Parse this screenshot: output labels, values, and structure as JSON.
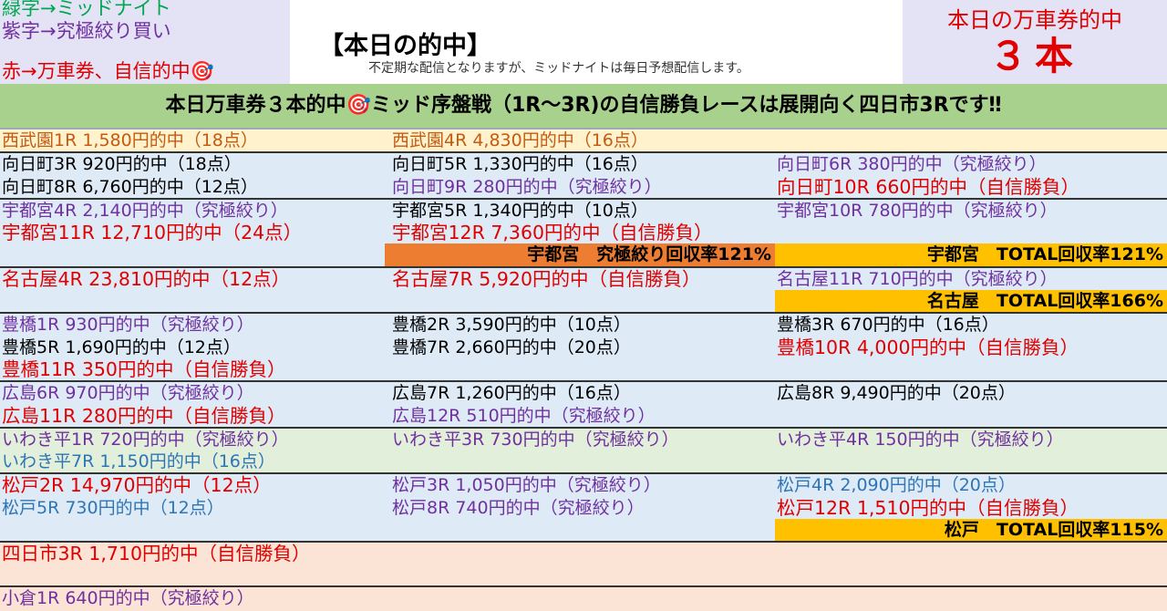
{
  "header": {
    "legend": [
      {
        "text": "緑字→ミッドナイト",
        "color": "#00a651"
      },
      {
        "text": "紫字→究極絞り買い",
        "color": "#7030a0"
      },
      {
        "text": "赤→万車券、自信的中🎯",
        "color": "#e00000"
      }
    ],
    "title": "【本日の的中】",
    "subtitle": "不定期な配信となりますが、ミッドナイトは毎日予想配信します。",
    "right_title": "本日の万車券的中",
    "right_count": "３本"
  },
  "banner": {
    "text": "本日万車券３本的中🎯ミッド序盤戦（1R〜3R)の自信勝負レースは展開向く四日市3Rです‼"
  },
  "sections": [
    {
      "background": "#fff2cc",
      "rows": [
        {
          "cells": [
            {
              "text": "西武園1R 1,580円的中（18点）",
              "color": "#c55a11"
            },
            {
              "text": "西武園4R 4,830円的中（16点）",
              "color": "#c55a11"
            },
            null
          ]
        }
      ]
    },
    {
      "background": "#deebf7",
      "rows": [
        {
          "cells": [
            {
              "text": "向日町3R 920円的中（18点）",
              "color": "#000000"
            },
            {
              "text": "向日町5R 1,330円的中（16点）",
              "color": "#000000"
            },
            {
              "text": "向日町6R 380円的中（究極絞り）",
              "color": "#7030a0"
            }
          ]
        },
        {
          "cells": [
            {
              "text": "向日町8R 6,760円的中（12点）",
              "color": "#000000"
            },
            {
              "text": "向日町9R 280円的中（究極絞り）",
              "color": "#7030a0"
            },
            {
              "text": "向日町10R 660円的中（自信勝負）",
              "color": "#e00000"
            }
          ]
        }
      ]
    },
    {
      "background": "#deebf7",
      "rows": [
        {
          "cells": [
            {
              "text": "宇都宮4R 2,140円的中（究極絞り）",
              "color": "#7030a0"
            },
            {
              "text": "宇都宮5R 1,340円的中（10点）",
              "color": "#000000"
            },
            {
              "text": "宇都宮10R 780円的中（究極絞り）",
              "color": "#7030a0"
            }
          ]
        },
        {
          "cells": [
            {
              "text": "宇都宮11R 12,710円的中（24点）",
              "color": "#e00000"
            },
            {
              "text": "宇都宮12R 7,360円的中（自信勝負）",
              "color": "#e00000"
            },
            null
          ]
        },
        {
          "cells": [
            null,
            {
              "text": "宇都宮　究極絞り回収率121%",
              "color": "#000000",
              "background": "#ed7d31"
            },
            {
              "text": "宇都宮　TOTAL回収率121%",
              "color": "#000000",
              "background": "#ffc000"
            }
          ]
        }
      ]
    },
    {
      "background": "#deebf7",
      "rows": [
        {
          "cells": [
            {
              "text": "名古屋4R 23,810円的中（12点）",
              "color": "#e00000"
            },
            {
              "text": "名古屋7R 5,920円的中（自信勝負）",
              "color": "#e00000"
            },
            {
              "text": "名古屋11R 710円的中（究極絞り）",
              "color": "#7030a0"
            }
          ]
        },
        {
          "cells": [
            null,
            null,
            {
              "text": "名古屋　TOTAL回収率166%",
              "color": "#000000",
              "background": "#ffc000"
            }
          ]
        }
      ]
    },
    {
      "background": "#deebf7",
      "rows": [
        {
          "cells": [
            {
              "text": "豊橋1R 930円的中（究極絞り）",
              "color": "#7030a0"
            },
            {
              "text": "豊橋2R 3,590円的中（10点）",
              "color": "#000000"
            },
            {
              "text": "豊橋3R 670円的中（16点）",
              "color": "#000000"
            }
          ]
        },
        {
          "cells": [
            {
              "text": "豊橋5R 1,690円的中（12点）",
              "color": "#000000"
            },
            {
              "text": "豊橋7R 2,660円的中（20点）",
              "color": "#000000"
            },
            {
              "text": "豊橋10R 4,000円的中（自信勝負）",
              "color": "#e00000"
            }
          ]
        },
        {
          "cells": [
            {
              "text": "豊橋11R 350円的中（自信勝負）",
              "color": "#e00000"
            },
            null,
            null
          ]
        }
      ]
    },
    {
      "background": "#deebf7",
      "rows": [
        {
          "cells": [
            {
              "text": "広島6R 970円的中（究極絞り）",
              "color": "#7030a0"
            },
            {
              "text": "広島7R 1,260円的中（16点）",
              "color": "#000000"
            },
            {
              "text": "広島8R 9,490円的中（20点）",
              "color": "#000000"
            }
          ]
        },
        {
          "cells": [
            {
              "text": "広島11R 280円的中（自信勝負）",
              "color": "#e00000"
            },
            {
              "text": "広島12R 510円的中（究極絞り）",
              "color": "#7030a0"
            },
            null
          ]
        }
      ]
    },
    {
      "background": "#e2efda",
      "rows": [
        {
          "cells": [
            {
              "text": "いわき平1R 720円的中（究極絞り）",
              "color": "#7030a0"
            },
            {
              "text": "いわき平3R 730円的中（究極絞り）",
              "color": "#7030a0"
            },
            {
              "text": "いわき平4R 150円的中（究極絞り）",
              "color": "#7030a0"
            }
          ]
        },
        {
          "cells": [
            {
              "text": "いわき平7R 1,150円的中（16点）",
              "color": "#2e75b6"
            },
            null,
            null
          ]
        }
      ]
    },
    {
      "background": "#deebf7",
      "rows": [
        {
          "cells": [
            {
              "text": "松戸2R 14,970円的中（12点）",
              "color": "#e00000"
            },
            {
              "text": "松戸3R 1,050円的中（究極絞り）",
              "color": "#7030a0"
            },
            {
              "text": "松戸4R 2,090円的中（20点）",
              "color": "#2e75b6"
            }
          ]
        },
        {
          "cells": [
            {
              "text": "松戸5R 730円的中（12点）",
              "color": "#2e75b6"
            },
            {
              "text": "松戸8R 740円的中（究極絞り）",
              "color": "#7030a0"
            },
            {
              "text": "松戸12R 1,510円的中（自信勝負）",
              "color": "#e00000"
            }
          ]
        },
        {
          "cells": [
            null,
            null,
            {
              "text": "松戸　TOTAL回収率115%",
              "color": "#000000",
              "background": "#ffc000"
            }
          ]
        }
      ]
    },
    {
      "background": "#fbe4d5",
      "rows": [
        {
          "cells": [
            {
              "text": "四日市3R 1,710円的中（自信勝負）",
              "color": "#e00000"
            },
            null,
            null
          ]
        }
      ]
    },
    {
      "background": "#fbe4d5",
      "rows": [
        {
          "cells": [
            {
              "text": "小倉1R 640円的中（究極絞り）",
              "color": "#7030a0"
            },
            null,
            null
          ]
        }
      ]
    }
  ]
}
